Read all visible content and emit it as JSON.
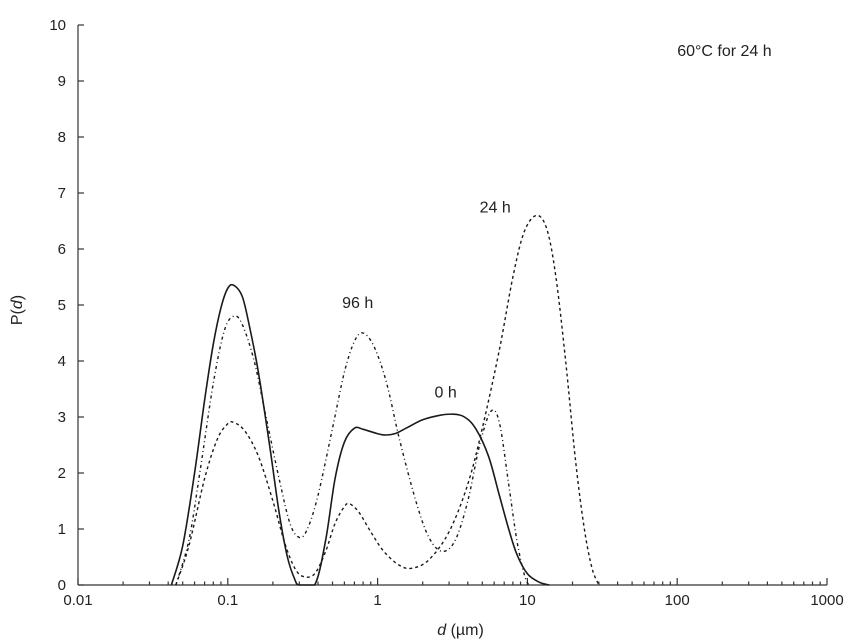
{
  "chart_data": {
    "type": "line",
    "title": "",
    "xlabel": "d (µm)",
    "xlabel_italic_part": "d",
    "xlabel_unit": " (µm)",
    "ylabel": "P(d)",
    "ylabel_prefix": "P(",
    "ylabel_italic_part": "d",
    "ylabel_suffix": ")",
    "xscale": "log",
    "xlim": [
      0.01,
      1000
    ],
    "ylim": [
      0,
      10
    ],
    "grid": false,
    "x_ticks": [
      0.01,
      0.1,
      1,
      10,
      100,
      1000
    ],
    "x_tick_labels": [
      "0.01",
      "0.1",
      "1",
      "10",
      "100",
      "1000"
    ],
    "y_ticks": [
      0,
      1,
      2,
      3,
      4,
      5,
      6,
      7,
      8,
      9,
      10
    ],
    "y_tick_labels": [
      "0",
      "1",
      "2",
      "3",
      "4",
      "5",
      "6",
      "7",
      "8",
      "9",
      "10"
    ],
    "annotations": [
      {
        "text": "60°C for 24 h",
        "x": 100,
        "y": 9.45,
        "position": "top-right"
      },
      {
        "text": "24 h",
        "x": 4.8,
        "y": 6.65
      },
      {
        "text": "96 h",
        "x": 0.58,
        "y": 4.95
      },
      {
        "text": "0 h",
        "x": 2.4,
        "y": 3.35
      }
    ],
    "series": [
      {
        "label": "0 h",
        "style": "solid",
        "points": [
          [
            0.042,
            0
          ],
          [
            0.05,
            0.7
          ],
          [
            0.06,
            2.0
          ],
          [
            0.07,
            3.3
          ],
          [
            0.08,
            4.3
          ],
          [
            0.09,
            4.95
          ],
          [
            0.1,
            5.3
          ],
          [
            0.11,
            5.35
          ],
          [
            0.125,
            5.15
          ],
          [
            0.14,
            4.6
          ],
          [
            0.16,
            3.8
          ],
          [
            0.19,
            2.5
          ],
          [
            0.22,
            1.3
          ],
          [
            0.25,
            0.5
          ],
          [
            0.28,
            0.1
          ],
          [
            0.3,
            0
          ],
          [
            0.38,
            0
          ],
          [
            0.45,
            0.8
          ],
          [
            0.52,
            1.9
          ],
          [
            0.6,
            2.55
          ],
          [
            0.7,
            2.8
          ],
          [
            0.8,
            2.78
          ],
          [
            0.95,
            2.72
          ],
          [
            1.1,
            2.68
          ],
          [
            1.3,
            2.7
          ],
          [
            1.6,
            2.82
          ],
          [
            2.0,
            2.95
          ],
          [
            2.6,
            3.03
          ],
          [
            3.2,
            3.05
          ],
          [
            3.8,
            3.0
          ],
          [
            4.5,
            2.8
          ],
          [
            5.5,
            2.3
          ],
          [
            6.5,
            1.6
          ],
          [
            7.5,
            1.0
          ],
          [
            8.5,
            0.55
          ],
          [
            10,
            0.2
          ],
          [
            12,
            0.05
          ],
          [
            14,
            0
          ]
        ]
      },
      {
        "label": "24 h",
        "style": "dashed",
        "points": [
          [
            0.045,
            0
          ],
          [
            0.055,
            0.7
          ],
          [
            0.07,
            1.9
          ],
          [
            0.085,
            2.6
          ],
          [
            0.1,
            2.88
          ],
          [
            0.11,
            2.9
          ],
          [
            0.13,
            2.75
          ],
          [
            0.16,
            2.3
          ],
          [
            0.2,
            1.5
          ],
          [
            0.24,
            0.75
          ],
          [
            0.28,
            0.3
          ],
          [
            0.32,
            0.15
          ],
          [
            0.38,
            0.2
          ],
          [
            0.45,
            0.6
          ],
          [
            0.52,
            1.1
          ],
          [
            0.6,
            1.4
          ],
          [
            0.65,
            1.45
          ],
          [
            0.75,
            1.3
          ],
          [
            0.9,
            0.95
          ],
          [
            1.1,
            0.6
          ],
          [
            1.4,
            0.35
          ],
          [
            1.7,
            0.3
          ],
          [
            2.2,
            0.45
          ],
          [
            3.0,
            0.95
          ],
          [
            4.0,
            1.8
          ],
          [
            5.0,
            2.8
          ],
          [
            6.5,
            4.2
          ],
          [
            8.0,
            5.5
          ],
          [
            9.5,
            6.3
          ],
          [
            11.5,
            6.6
          ],
          [
            13.5,
            6.35
          ],
          [
            15.5,
            5.5
          ],
          [
            18,
            4.0
          ],
          [
            21,
            2.2
          ],
          [
            24,
            1.0
          ],
          [
            27,
            0.3
          ],
          [
            30,
            0
          ]
        ]
      },
      {
        "label": "96 h",
        "style": "dashdot",
        "points": [
          [
            0.045,
            0
          ],
          [
            0.055,
            0.8
          ],
          [
            0.065,
            2.0
          ],
          [
            0.08,
            3.6
          ],
          [
            0.095,
            4.55
          ],
          [
            0.11,
            4.8
          ],
          [
            0.125,
            4.65
          ],
          [
            0.15,
            4.0
          ],
          [
            0.18,
            3.0
          ],
          [
            0.22,
            1.9
          ],
          [
            0.26,
            1.1
          ],
          [
            0.3,
            0.85
          ],
          [
            0.34,
            1.0
          ],
          [
            0.4,
            1.6
          ],
          [
            0.5,
            2.8
          ],
          [
            0.6,
            3.8
          ],
          [
            0.7,
            4.35
          ],
          [
            0.8,
            4.5
          ],
          [
            0.95,
            4.25
          ],
          [
            1.15,
            3.6
          ],
          [
            1.4,
            2.6
          ],
          [
            1.8,
            1.5
          ],
          [
            2.2,
            0.85
          ],
          [
            2.7,
            0.6
          ],
          [
            3.3,
            0.8
          ],
          [
            4.0,
            1.5
          ],
          [
            4.8,
            2.5
          ],
          [
            5.7,
            3.1
          ],
          [
            6.5,
            2.9
          ],
          [
            7.5,
            1.8
          ],
          [
            8.5,
            0.8
          ],
          [
            9.5,
            0.2
          ],
          [
            10.2,
            0
          ]
        ]
      }
    ]
  }
}
